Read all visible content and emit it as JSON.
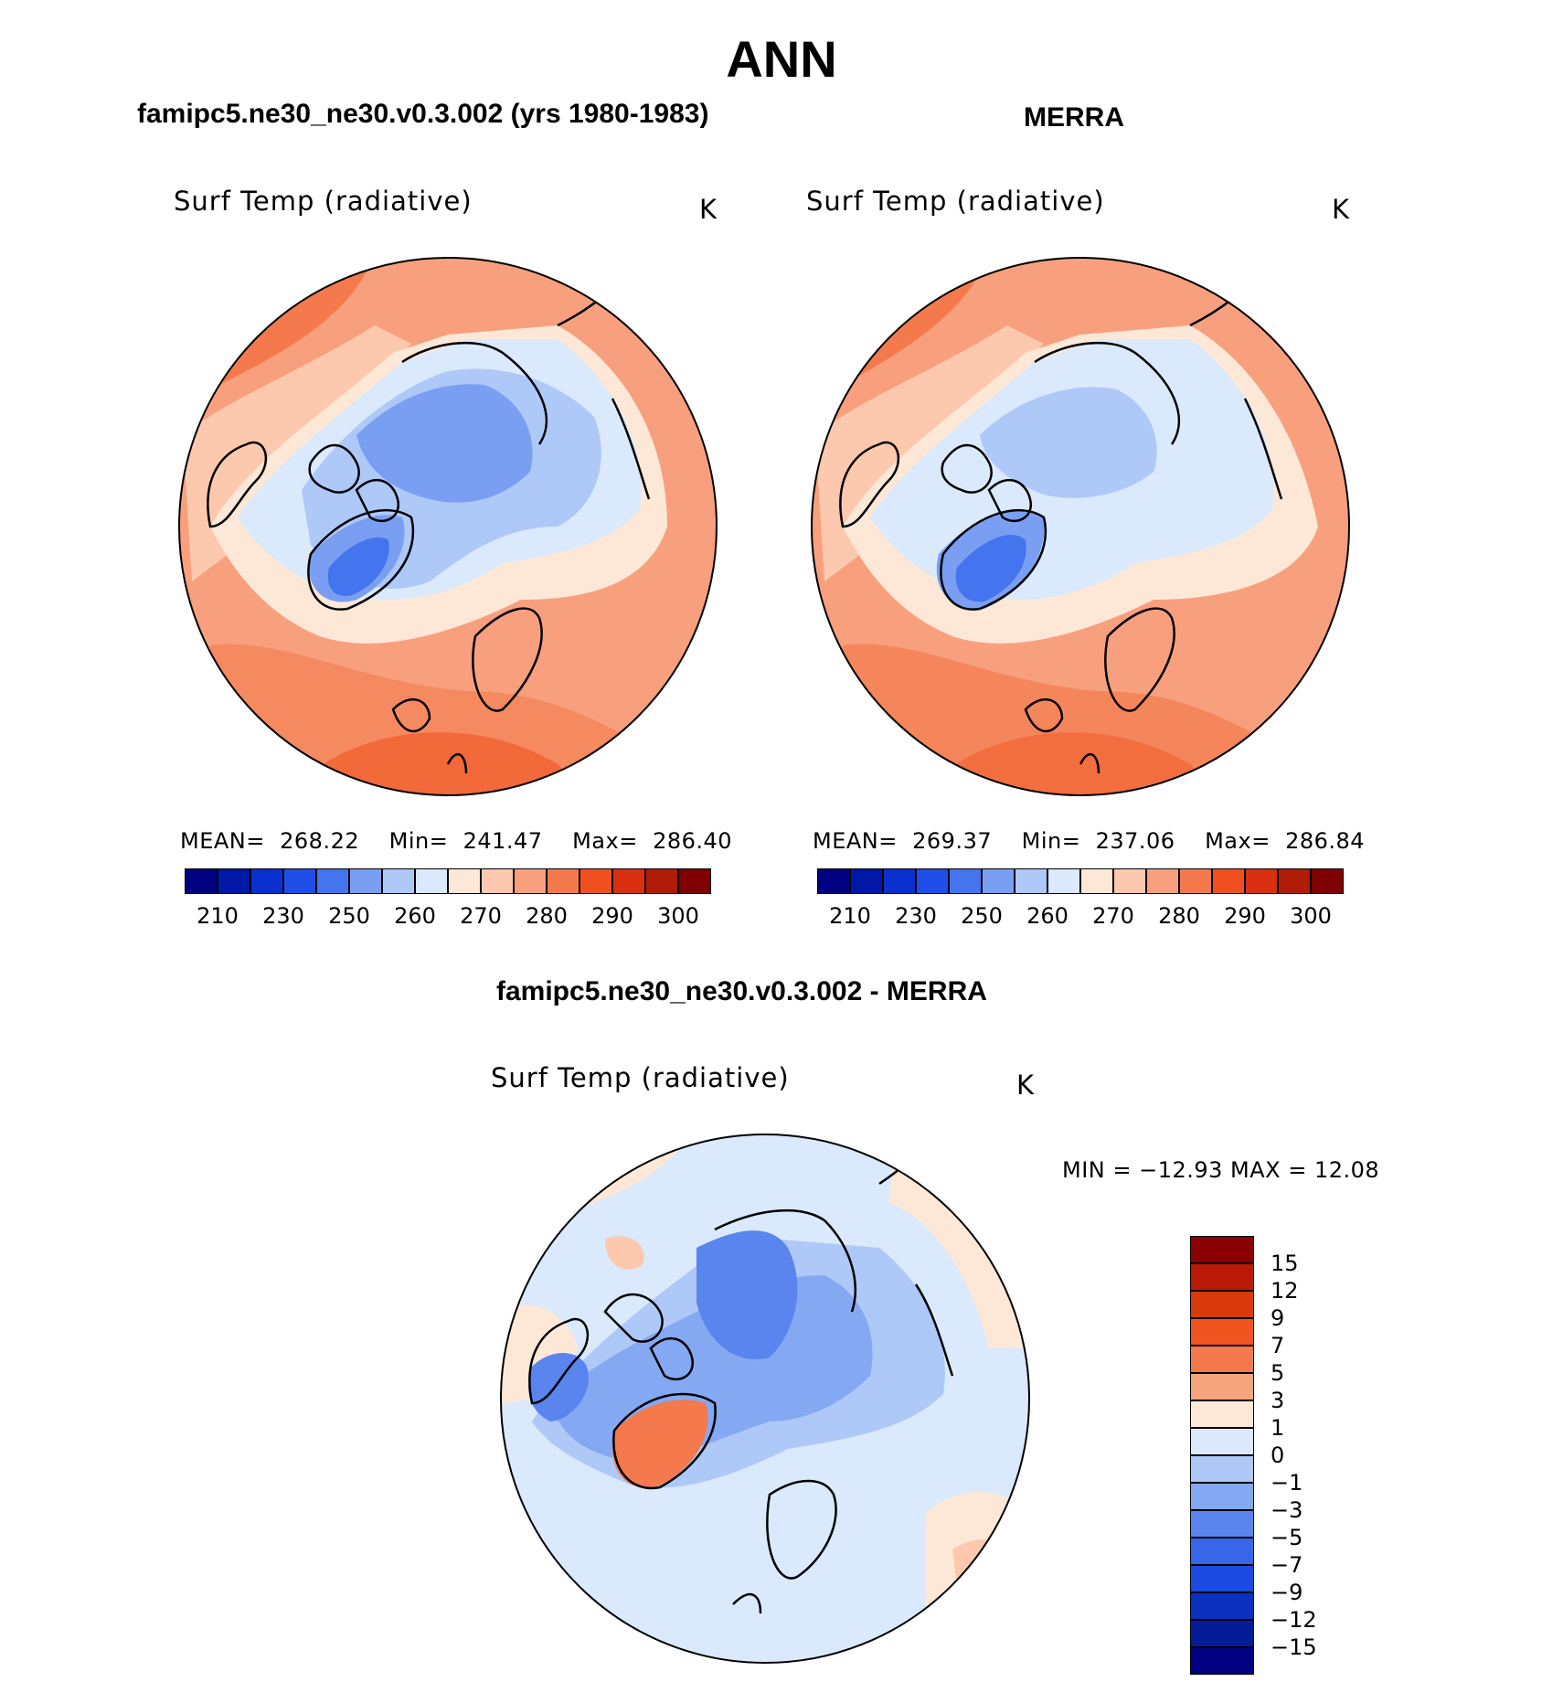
{
  "page_title": "ANN",
  "panels": {
    "model": {
      "heading": "famipc5.ne30_ne30.v0.3.002 (yrs 1980-1983)",
      "variable": "Surf Temp (radiative)",
      "units": "K",
      "stats": {
        "mean_label": "MEAN=",
        "mean": "268.22",
        "min_label": "Min=",
        "min": "241.47",
        "max_label": "Max=",
        "max": "286.40"
      }
    },
    "obs": {
      "heading": "MERRA",
      "variable": "Surf Temp (radiative)",
      "units": "K",
      "stats": {
        "mean_label": "MEAN=",
        "mean": "269.37",
        "min_label": "Min=",
        "min": "237.06",
        "max_label": "Max=",
        "max": "286.84"
      }
    },
    "diff": {
      "heading": "famipc5.ne30_ne30.v0.3.002 - MERRA",
      "variable": "Surf Temp (radiative)",
      "units": "K",
      "minmax": "MIN =  −12.93 MAX =    12.08"
    }
  },
  "abs_colorbar": {
    "colors": [
      "#000080",
      "#0018a8",
      "#0a30d0",
      "#1f4fe8",
      "#4474ee",
      "#7a9ff2",
      "#aec8f7",
      "#dae9fb",
      "#fde8d8",
      "#fcc9ae",
      "#f8a07e",
      "#f47a4d",
      "#f0501f",
      "#d83010",
      "#b01c08",
      "#800000"
    ],
    "labels": [
      "210",
      "230",
      "250",
      "260",
      "270",
      "280",
      "290",
      "300"
    ]
  },
  "diff_colorbar": {
    "colors": [
      "#8b0000",
      "#b81a05",
      "#d83a0c",
      "#f05520",
      "#f47a4d",
      "#f7a57e",
      "#fde8d8",
      "#dae9fb",
      "#aec8f7",
      "#85a8f3",
      "#5a85ee",
      "#3866e8",
      "#1a4ae0",
      "#0a30c0",
      "#051c98",
      "#000080"
    ],
    "labels": [
      "15",
      "12",
      "9",
      "7",
      "5",
      "3",
      "1",
      "0",
      "−1",
      "−3",
      "−5",
      "−7",
      "−9",
      "−12",
      "−15"
    ]
  },
  "map_colors": {
    "coastline": "#000000",
    "model": {
      "base": "#f8a07e",
      "warm": "#f47a4d",
      "hot": "#f0501f",
      "mild": "#fcc9ae",
      "cool": "#fde8d8",
      "cold1": "#dae9fb",
      "cold2": "#aec8f7",
      "cold3": "#7a9ff2",
      "cold4": "#4474ee"
    },
    "diff": {
      "base": "#dae9fb",
      "neg1": "#aec8f7",
      "neg2": "#85a8f3",
      "neg3": "#5a85ee",
      "pos1": "#fde8d8",
      "pos2": "#fcc9ae",
      "pos3": "#f47a4d"
    }
  }
}
